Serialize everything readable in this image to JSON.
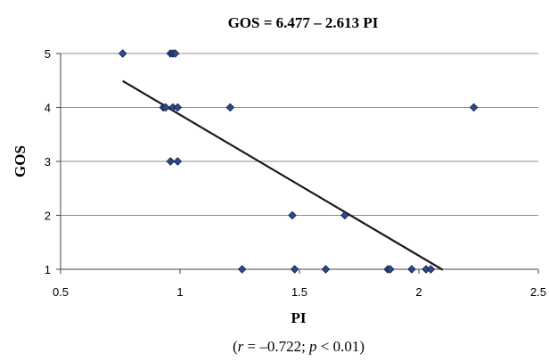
{
  "chart_data": {
    "type": "scatter",
    "title": "GOS = 6.477 – 2.613 PI",
    "xlabel": "PI",
    "ylabel": "GOS",
    "xlim": [
      0.5,
      2.5
    ],
    "ylim": [
      1,
      5
    ],
    "x_ticks": [
      "0.5",
      "1",
      "1.5",
      "2",
      "2.5"
    ],
    "y_ticks": [
      "1",
      "2",
      "3",
      "4",
      "5"
    ],
    "grid": "horizontal",
    "legend": "none",
    "marker_color": "#2e4a8f",
    "marker_edge": "#0d1a40",
    "line_color": "#1a1a1a",
    "points": [
      {
        "x": 0.76,
        "y": 5
      },
      {
        "x": 0.96,
        "y": 5
      },
      {
        "x": 0.97,
        "y": 5
      },
      {
        "x": 0.98,
        "y": 5
      },
      {
        "x": 0.93,
        "y": 4
      },
      {
        "x": 0.94,
        "y": 4
      },
      {
        "x": 0.97,
        "y": 4
      },
      {
        "x": 0.99,
        "y": 4
      },
      {
        "x": 1.21,
        "y": 4
      },
      {
        "x": 2.23,
        "y": 4
      },
      {
        "x": 0.96,
        "y": 3
      },
      {
        "x": 0.99,
        "y": 3
      },
      {
        "x": 1.47,
        "y": 2
      },
      {
        "x": 1.69,
        "y": 2
      },
      {
        "x": 1.26,
        "y": 1
      },
      {
        "x": 1.48,
        "y": 1
      },
      {
        "x": 1.61,
        "y": 1
      },
      {
        "x": 1.87,
        "y": 1
      },
      {
        "x": 1.88,
        "y": 1
      },
      {
        "x": 1.97,
        "y": 1
      },
      {
        "x": 2.03,
        "y": 1
      },
      {
        "x": 2.05,
        "y": 1
      }
    ],
    "regression": {
      "intercept": 6.477,
      "slope": -2.613,
      "x_range": [
        0.76,
        2.1
      ]
    },
    "caption": {
      "open": "(",
      "r_sym": "r",
      "r_text": " = –0.722; ",
      "p_sym": "p",
      "p_text": " < 0.01)"
    }
  }
}
